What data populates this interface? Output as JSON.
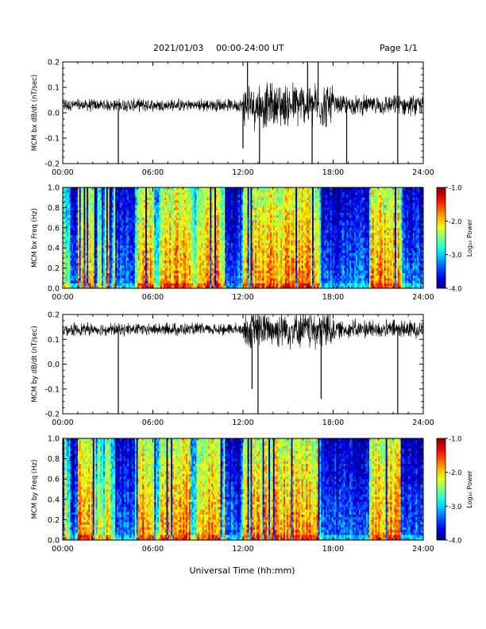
{
  "header": {
    "date": "2021/01/03",
    "time_range": "00:00-24:00 UT",
    "page": "Page 1/1"
  },
  "xaxis_label": "Universal Time (hh:mm)",
  "colorbar": {
    "label": "Log₁₀ Power",
    "ticks": [
      "-1.0",
      "-2.0",
      "-3.0",
      "-4.0"
    ],
    "range": [
      -4.0,
      -1.0
    ]
  },
  "chart_data": [
    {
      "type": "line",
      "ylabel": "MCM bx dB/dt (nT/sec)",
      "x_ticks": [
        "00:00",
        "06:00",
        "12:00",
        "18:00",
        "24:00"
      ],
      "y_ticks": [
        "0.2",
        "0.1",
        "0.0",
        "-0.1",
        "-0.2"
      ],
      "xlim_hours": [
        0,
        24
      ],
      "ylim": [
        -0.2,
        0.2
      ],
      "baseline": 0.03,
      "activity": [
        {
          "start_h": 0,
          "end_h": 12,
          "amplitude": 0.02
        },
        {
          "start_h": 12,
          "end_h": 18,
          "amplitude": 0.07
        },
        {
          "start_h": 18,
          "end_h": 24,
          "amplitude": 0.03
        }
      ],
      "spikes": [
        {
          "t_h": 3.7,
          "value": -0.2
        },
        {
          "t_h": 12.0,
          "value": -0.14
        },
        {
          "t_h": 12.3,
          "value": 0.2
        },
        {
          "t_h": 13.1,
          "value": -0.2
        },
        {
          "t_h": 16.3,
          "value": 0.2
        },
        {
          "t_h": 16.6,
          "value": -0.2
        },
        {
          "t_h": 17.0,
          "value": 0.2
        },
        {
          "t_h": 18.9,
          "value": -0.2
        },
        {
          "t_h": 22.3,
          "value": 0.2
        },
        {
          "t_h": 22.3,
          "value": -0.2
        }
      ]
    },
    {
      "type": "heatmap",
      "ylabel": "MCM bx Freq (Hz)",
      "x_ticks": [
        "00:00",
        "06:00",
        "12:00",
        "18:00",
        "24:00"
      ],
      "y_ticks": [
        "1.0",
        "0.8",
        "0.6",
        "0.4",
        "0.2",
        "0.0"
      ],
      "xlim_hours": [
        0,
        24
      ],
      "ylim": [
        0,
        1.0
      ],
      "zlim": [
        -4.0,
        -1.0
      ],
      "active_bands_h": [
        [
          1.0,
          2.2
        ],
        [
          2.8,
          3.2
        ],
        [
          5.0,
          6.0
        ],
        [
          6.5,
          8.5
        ],
        [
          9.0,
          10.5
        ],
        [
          12.0,
          17.0
        ],
        [
          20.5,
          22.5
        ]
      ],
      "quiet_bands_h": [
        [
          0.5,
          1.0
        ],
        [
          3.6,
          4.8
        ],
        [
          10.8,
          11.9
        ],
        [
          17.2,
          20.3
        ],
        [
          22.6,
          24.0
        ]
      ]
    },
    {
      "type": "line",
      "ylabel": "MCM by dB/dt (nT/sec)",
      "x_ticks": [
        "00:00",
        "06:00",
        "12:00",
        "18:00",
        "24:00"
      ],
      "y_ticks": [
        "0.2",
        "0.1",
        "0.0",
        "-0.1",
        "-0.2"
      ],
      "xlim_hours": [
        0,
        24
      ],
      "ylim": [
        -0.2,
        0.2
      ],
      "baseline": 0.14,
      "activity": [
        {
          "start_h": 0,
          "end_h": 12,
          "amplitude": 0.02
        },
        {
          "start_h": 12,
          "end_h": 18,
          "amplitude": 0.06
        },
        {
          "start_h": 18,
          "end_h": 24,
          "amplitude": 0.03
        }
      ],
      "spikes": [
        {
          "t_h": 3.7,
          "value": -0.2
        },
        {
          "t_h": 12.6,
          "value": -0.1
        },
        {
          "t_h": 13.0,
          "value": -0.2
        },
        {
          "t_h": 17.2,
          "value": -0.14
        },
        {
          "t_h": 22.3,
          "value": -0.2
        }
      ]
    },
    {
      "type": "heatmap",
      "ylabel": "MCM by Freq (Hz)",
      "x_ticks": [
        "00:00",
        "06:00",
        "12:00",
        "18:00",
        "24:00"
      ],
      "y_ticks": [
        "1.0",
        "0.8",
        "0.6",
        "0.4",
        "0.2",
        "0.0"
      ],
      "xlim_hours": [
        0,
        24
      ],
      "ylim": [
        0,
        1.0
      ],
      "zlim": [
        -4.0,
        -1.0
      ],
      "active_bands_h": [
        [
          1.0,
          2.2
        ],
        [
          2.8,
          3.2
        ],
        [
          5.0,
          6.0
        ],
        [
          6.5,
          8.5
        ],
        [
          9.0,
          10.5
        ],
        [
          12.0,
          17.0
        ],
        [
          20.5,
          22.5
        ]
      ],
      "quiet_bands_h": [
        [
          0.5,
          1.0
        ],
        [
          3.6,
          4.8
        ],
        [
          10.8,
          11.9
        ],
        [
          17.2,
          20.3
        ],
        [
          22.6,
          24.0
        ]
      ]
    }
  ]
}
